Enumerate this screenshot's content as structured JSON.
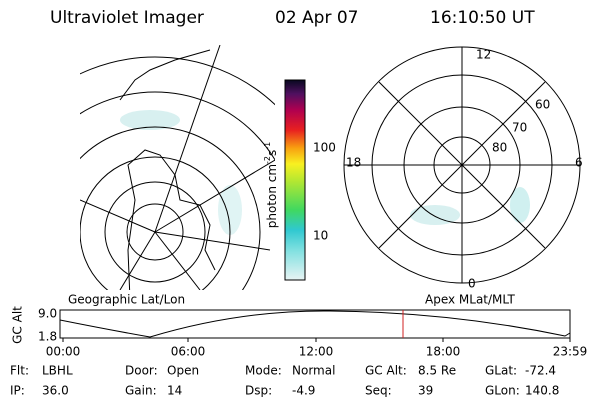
{
  "header": {
    "title": "Ultraviolet Imager",
    "date": "02 Apr 07",
    "time": "16:10:50 UT"
  },
  "colorbar": {
    "unit": {
      "base": "photon cm",
      "exp1": "-2",
      "mid": "s",
      "exp2": "-1"
    },
    "labels": [
      "100",
      "10"
    ]
  },
  "polar": {
    "mlt_labels": {
      "top": "12",
      "left": "18",
      "right": "6",
      "bottom": "0"
    },
    "lat_labels": [
      "60",
      "70",
      "80"
    ]
  },
  "panel_labels": {
    "left": "Geographic Lat/Lon",
    "right": "Apex MLat/MLT"
  },
  "orbit": {
    "axis_label": "GC Alt",
    "y_labels": [
      "9.0",
      "1.8"
    ],
    "time_labels": [
      "00:00",
      "06:00",
      "12:00",
      "18:00",
      "23:59"
    ]
  },
  "footer": [
    [
      {
        "label": "Flt:",
        "value": "LBHL"
      },
      {
        "label": "Door:",
        "value": "Open"
      },
      {
        "label": "Mode:",
        "value": "Normal"
      },
      {
        "label": "GC Alt:",
        "value": "8.5 Re"
      },
      {
        "label": "GLat:",
        "value": "-72.4"
      }
    ],
    [
      {
        "label": "IP:",
        "value": "36.0"
      },
      {
        "label": "Gain:",
        "value": "14"
      },
      {
        "label": "Dsp:",
        "value": "-4.9"
      },
      {
        "label": "Seq:",
        "value": "39"
      },
      {
        "label": "GLon:",
        "value": "140.8"
      }
    ]
  ]
}
